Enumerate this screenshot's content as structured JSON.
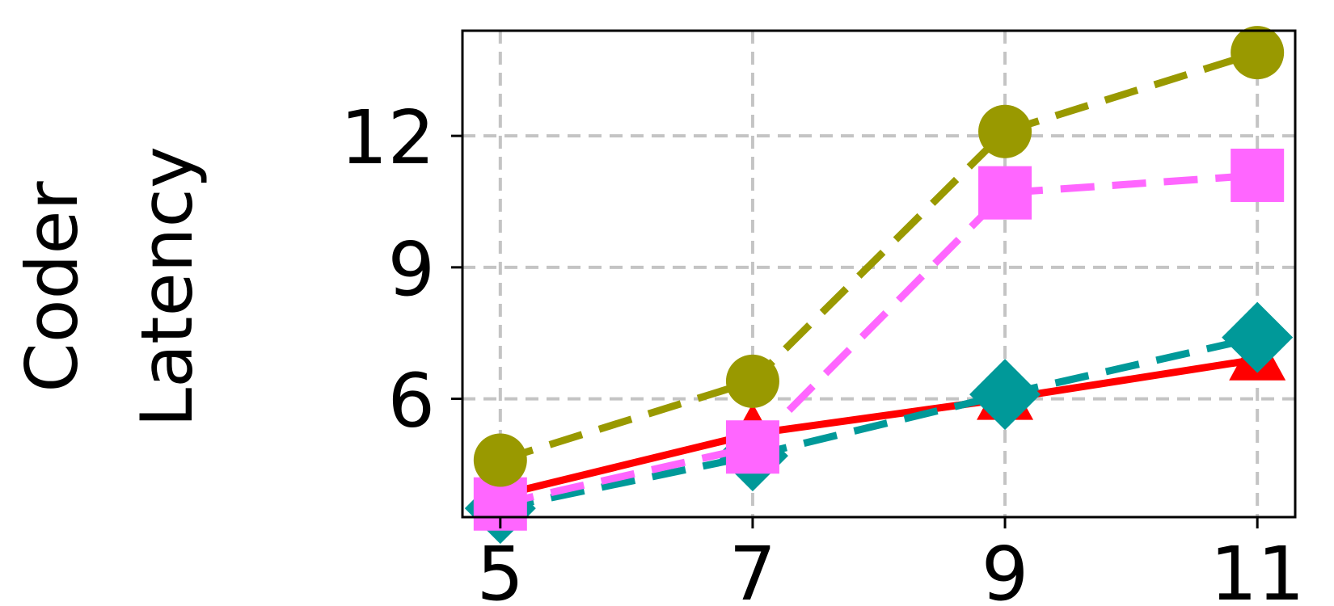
{
  "chart_data": {
    "type": "line",
    "ylabel": [
      "Coder",
      "Latency"
    ],
    "xlabel": "",
    "x": [
      5,
      7,
      9,
      11
    ],
    "xlim": [
      4.7,
      11.3
    ],
    "ylim": [
      3.3,
      14.4
    ],
    "xticks": [
      "5",
      "7",
      "9",
      "11"
    ],
    "yticks": [
      6,
      9,
      12
    ],
    "ytick_labels": [
      "6",
      "9",
      "12"
    ],
    "grid": true,
    "series": [
      {
        "color": "#FF0000",
        "dash": "solid",
        "marker": "triangle",
        "values": [
          3.8,
          5.2,
          6.0,
          6.9
        ]
      },
      {
        "color": "#009999",
        "dash": "dashed",
        "marker": "diamond",
        "values": [
          3.5,
          4.7,
          6.1,
          7.4
        ]
      },
      {
        "color": "#FF66FF",
        "dash": "dashed",
        "marker": "square",
        "values": [
          3.6,
          4.9,
          10.7,
          11.1
        ]
      },
      {
        "color": "#999900",
        "dash": "dashed",
        "marker": "circle",
        "values": [
          4.6,
          6.4,
          12.1,
          13.9
        ]
      }
    ]
  }
}
